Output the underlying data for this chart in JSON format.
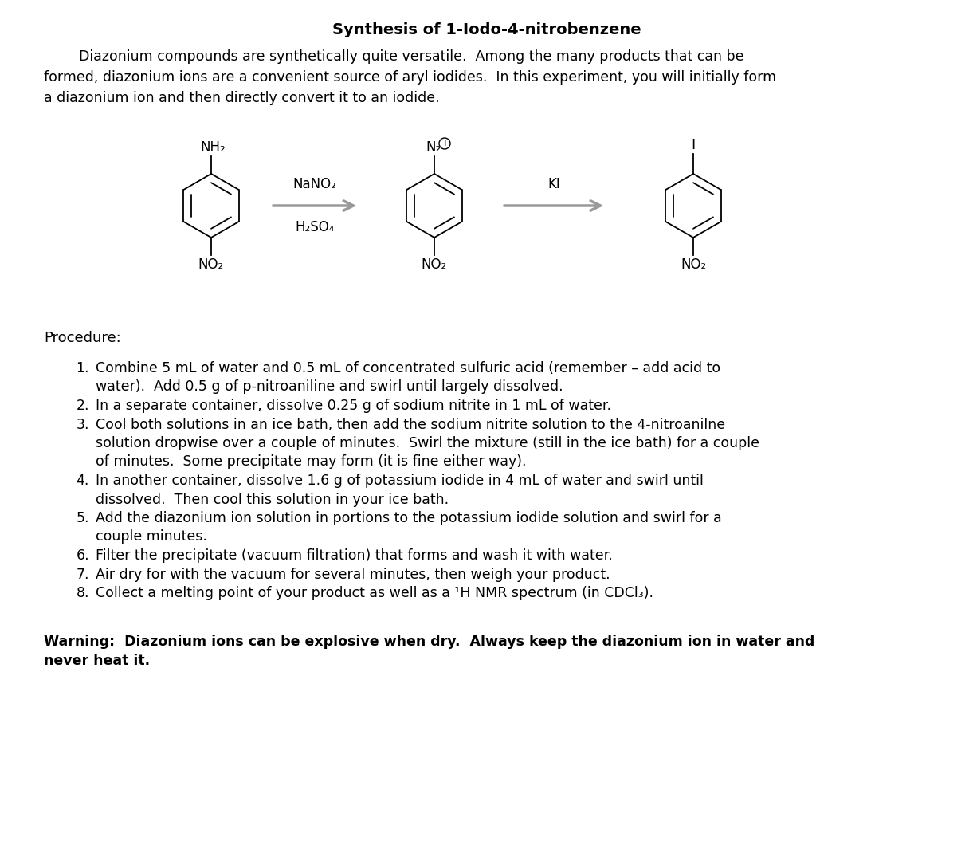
{
  "title": "Synthesis of 1-Iodo-4-nitrobenzene",
  "intro_line1": "        Diazonium compounds are synthetically quite versatile.  Among the many products that can be",
  "intro_line2": "formed, diazonium ions are a convenient source of aryl iodides.  In this experiment, you will initially form",
  "intro_line3": "a diazonium ion and then directly convert it to an iodide.",
  "procedure_header": "Procedure:",
  "items": [
    [
      "1.",
      "Combine 5 mL of water and 0.5 mL of concentrated sulfuric acid (remember – add acid to"
    ],
    [
      "",
      "water).  Add 0.5 g of p-nitroaniline and swirl until largely dissolved."
    ],
    [
      "2.",
      "In a separate container, dissolve 0.25 g of sodium nitrite in 1 mL of water."
    ],
    [
      "3.",
      "Cool both solutions in an ice bath, then add the sodium nitrite solution to the 4-nitroanilne"
    ],
    [
      "",
      "solution dropwise over a couple of minutes.  Swirl the mixture (still in the ice bath) for a couple"
    ],
    [
      "",
      "of minutes.  Some precipitate may form (it is fine either way)."
    ],
    [
      "4.",
      "In another container, dissolve 1.6 g of potassium iodide in 4 mL of water and swirl until"
    ],
    [
      "",
      "dissolved.  Then cool this solution in your ice bath."
    ],
    [
      "5.",
      "Add the diazonium ion solution in portions to the potassium iodide solution and swirl for a"
    ],
    [
      "",
      "couple minutes."
    ],
    [
      "6.",
      "Filter the precipitate (vacuum filtration) that forms and wash it with water."
    ],
    [
      "7.",
      "Air dry for with the vacuum for several minutes, then weigh your product."
    ],
    [
      "8.",
      "Collect a melting point of your product as well as a ¹H NMR spectrum (in CDCl₃)."
    ]
  ],
  "warning": "Warning:  Diazonium ions can be explosive when dry.  Always keep the diazonium ion in water and",
  "warning2": "never heat it.",
  "fig_width": 12.21,
  "fig_height": 10.65,
  "dpi": 100
}
